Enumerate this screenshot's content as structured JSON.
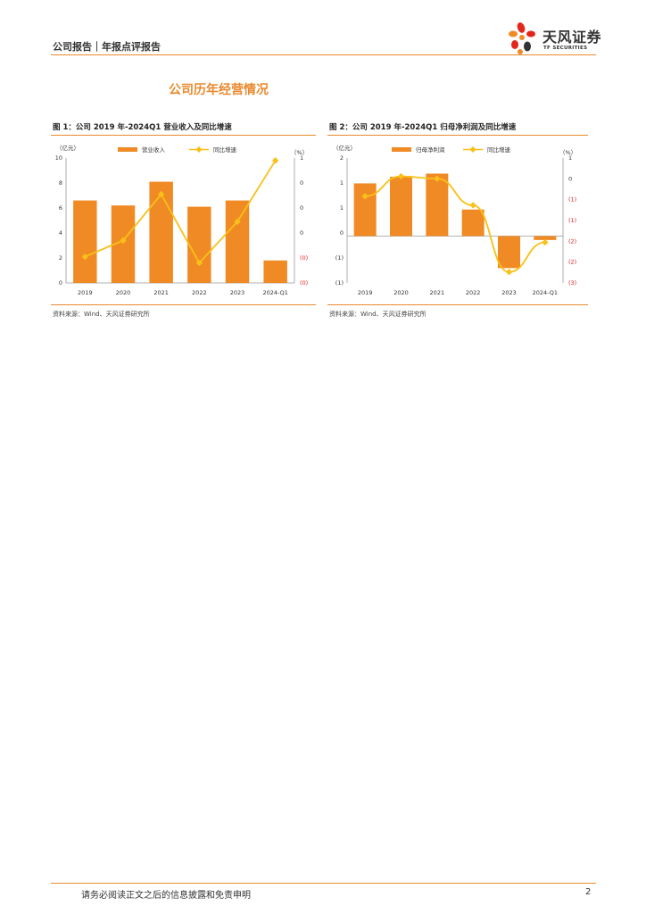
{
  "header": {
    "breadcrumb": "公司报告｜年报点评报告"
  },
  "logo": {
    "name_cn": "天风证券",
    "name_en": "TF SECURITIES"
  },
  "section_title": "公司历年经营情况",
  "figures": [
    {
      "title": "图 1：公司 2019 年-2024Q1 营业收入及同比增速",
      "source": "资料来源：Wind、天风证券研究所"
    },
    {
      "title": "图 2：公司 2019 年-2024Q1 归母净利润及同比增速",
      "source": "资料来源：Wind、天风证券研究所"
    }
  ],
  "chart_data": [
    {
      "type": "bar",
      "categories": [
        "2019",
        "2020",
        "2021",
        "2022",
        "2023",
        "2024-Q1"
      ],
      "y_unit_label": "（亿元）",
      "y2_unit_label": "（%）",
      "ylim": [
        0,
        10
      ],
      "y_ticks": [
        "0",
        "2",
        "4",
        "6",
        "8",
        "10"
      ],
      "y2_ticks": [
        "(0)",
        "(0)",
        "0",
        "0",
        "0",
        "1"
      ],
      "series": [
        {
          "name": "营业收入",
          "kind": "bar",
          "axis": "left",
          "values": [
            6.6,
            6.2,
            8.1,
            6.1,
            6.6,
            1.8
          ]
        },
        {
          "name": "同比增速",
          "kind": "line",
          "axis": "right",
          "values": [
            2.1,
            3.4,
            7.1,
            1.6,
            4.9,
            9.8
          ]
        }
      ],
      "grid": false,
      "legend": "top",
      "colors": {
        "bar": "#f08a24",
        "line": "#f9c017",
        "neg_tick": "#e02020"
      }
    },
    {
      "type": "bar",
      "categories": [
        "2019",
        "2020",
        "2021",
        "2022",
        "2023",
        "2024-Q1"
      ],
      "y_unit_label": "（亿元）",
      "y2_unit_label": "（%）",
      "ylim": [
        -1.2,
        2
      ],
      "y_ticks": [
        "(1)",
        "(1)",
        "0",
        "1",
        "1",
        "2"
      ],
      "y2_ticks": [
        "(3)",
        "(2)",
        "(2)",
        "(1)",
        "(1)",
        "0",
        "1"
      ],
      "series": [
        {
          "name": "归母净利润",
          "kind": "bar",
          "axis": "left",
          "values": [
            1.35,
            1.52,
            1.6,
            0.68,
            -0.82,
            -0.1
          ]
        },
        {
          "name": "同比增速",
          "kind": "line",
          "axis": "right",
          "values": [
            1.02,
            1.53,
            1.47,
            0.79,
            -0.92,
            -0.16
          ]
        }
      ],
      "grid": false,
      "legend": "top",
      "colors": {
        "bar": "#f08a24",
        "line": "#f9c017",
        "neg_tick": "#e02020"
      }
    }
  ],
  "footer": {
    "disclaimer": "请务必阅读正文之后的信息披露和免责申明",
    "page": "2"
  }
}
